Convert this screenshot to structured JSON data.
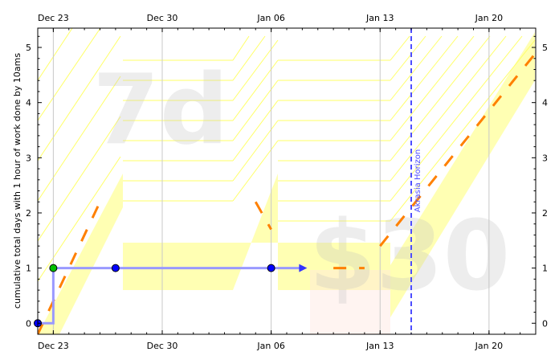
{
  "chart_data": {
    "type": "line",
    "ylabel": "cumulative total days with 1 hour of work done by 10ams",
    "x_ticks": [
      "Dec 23",
      "Dec 30",
      "Jan 06",
      "Jan 13",
      "Jan 20"
    ],
    "y_ticks": [
      "0",
      "1",
      "2",
      "3",
      "4",
      "5"
    ],
    "xlim": [
      "2019-12-22",
      "2020-01-23"
    ],
    "ylim": [
      -0.2,
      5.35
    ],
    "grid": "vertical lines at x ticks",
    "watermarks": {
      "goal": "7d",
      "pledge": "$30"
    },
    "akrasia_horizon": {
      "date": "2020-01-15",
      "label": "Akrasia Horizon"
    },
    "datapoints": [
      {
        "date": "2019-12-22",
        "value": 0
      },
      {
        "date": "2019-12-23",
        "value": 1
      },
      {
        "date": "2019-12-27",
        "value": 1
      },
      {
        "date": "2020-01-06",
        "value": 1
      }
    ],
    "projection_end": {
      "date": "2020-01-08",
      "value": 1
    },
    "road_segments": [
      {
        "from": [
          "2019-12-22",
          -0.2
        ],
        "to": [
          "2019-12-26",
          2.2
        ]
      },
      {
        "from": [
          "2020-01-05",
          2.2
        ],
        "to": [
          "2020-01-06",
          1.7
        ]
      },
      {
        "from": [
          "2020-01-10",
          1
        ],
        "to": [
          "2020-01-12",
          1
        ]
      },
      {
        "from": [
          "2020-01-13",
          1.4
        ],
        "to": [
          "2020-01-23",
          4.9
        ]
      }
    ],
    "colors": {
      "road": "#ff8000",
      "dial_line": "#9999ff",
      "datapoint_fill": "#0000ff",
      "first_point_fill": "#00c000",
      "horizon": "#4d4dff",
      "yellow_band": "#ffff99"
    }
  }
}
